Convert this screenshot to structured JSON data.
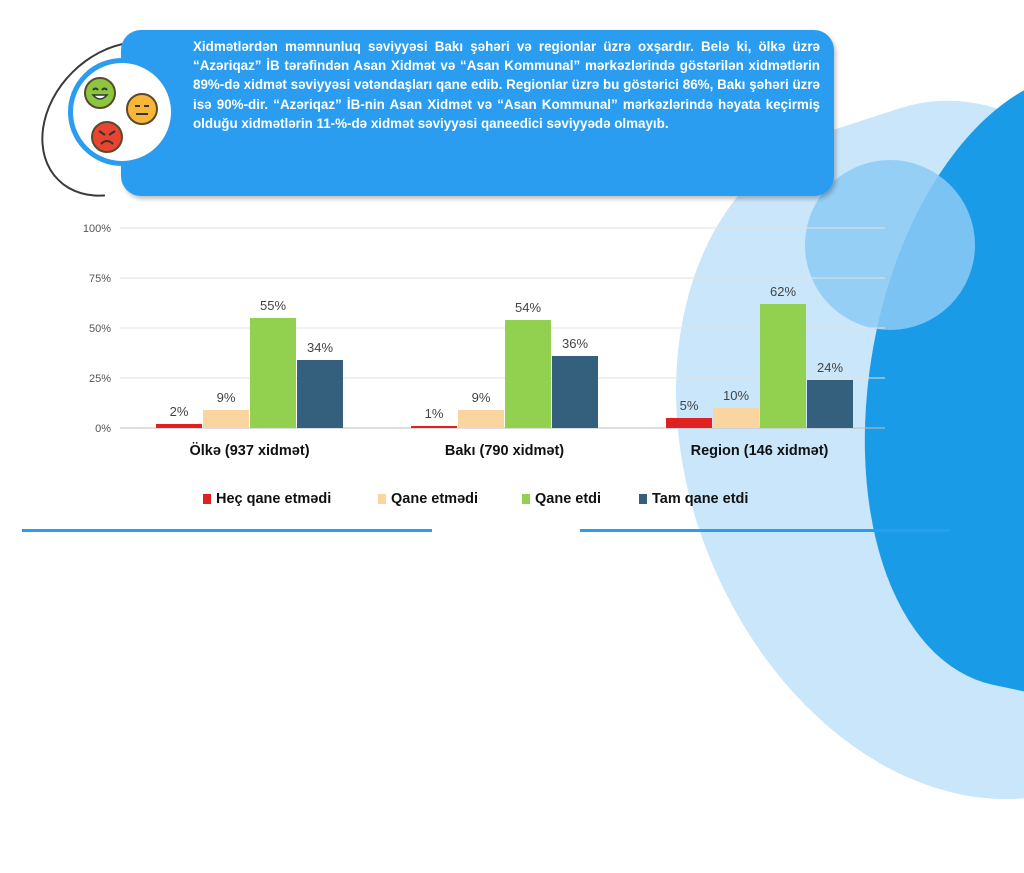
{
  "callout": {
    "text": "Xidmətlərdən məmnunluq səviyyəsi Bakı şəhəri və regionlar üzrə oxşardır. Belə ki, ölkə üzrə “Azəriqaz” İB tərəfindən Asan Xidmət və “Asan Kommunal” mərkəzlərində göstərilən xidmətlərin 89%-də xidmət səviyyəsi vətəndaşları qane edib. Regionlar üzrə bu göstərici 86%, Bakı şəhəri üzrə isə 90%-dir. “Azəriqaz” İB-nin Asan Xidmət və “Asan Kommunal” mərkəzlərində həyata keçirmiş olduğu  xidmətlərin 11-%-də xidmət səviyyəsi qaneedici səviyyədə olmayıb."
  },
  "icons": [
    "happy-face-icon",
    "neutral-face-icon",
    "angry-face-icon"
  ],
  "colors": {
    "callout_bg": "#2a9df0",
    "accent": "#2a9df0"
  },
  "chart_data": {
    "type": "bar",
    "categories": [
      "Ölkə (937 xidmət)",
      "Bakı (790 xidmət)",
      "Region (146 xidmət)"
    ],
    "series": [
      {
        "name": "Heç qane etmədi",
        "values": [
          2,
          1,
          5
        ],
        "labels": [
          "2%",
          "1%",
          "5%"
        ],
        "color": "#e0211f"
      },
      {
        "name": "Qane etmədi",
        "values": [
          9,
          9,
          10
        ],
        "labels": [
          "9%",
          "9%",
          "10%"
        ],
        "color": "#fbd5a0"
      },
      {
        "name": "Qane etdi",
        "values": [
          55,
          54,
          62
        ],
        "labels": [
          "55%",
          "54%",
          "62%"
        ],
        "color": "#92d050"
      },
      {
        "name": "Tam qane etdi",
        "values": [
          34,
          36,
          24
        ],
        "labels": [
          "34%",
          "36%",
          "24%"
        ],
        "color": "#34607e"
      }
    ],
    "yticks": [
      "0%",
      "25%",
      "50%",
      "75%",
      "100%"
    ],
    "ylim": [
      0,
      100
    ],
    "grid": true,
    "legend": "bottom"
  }
}
